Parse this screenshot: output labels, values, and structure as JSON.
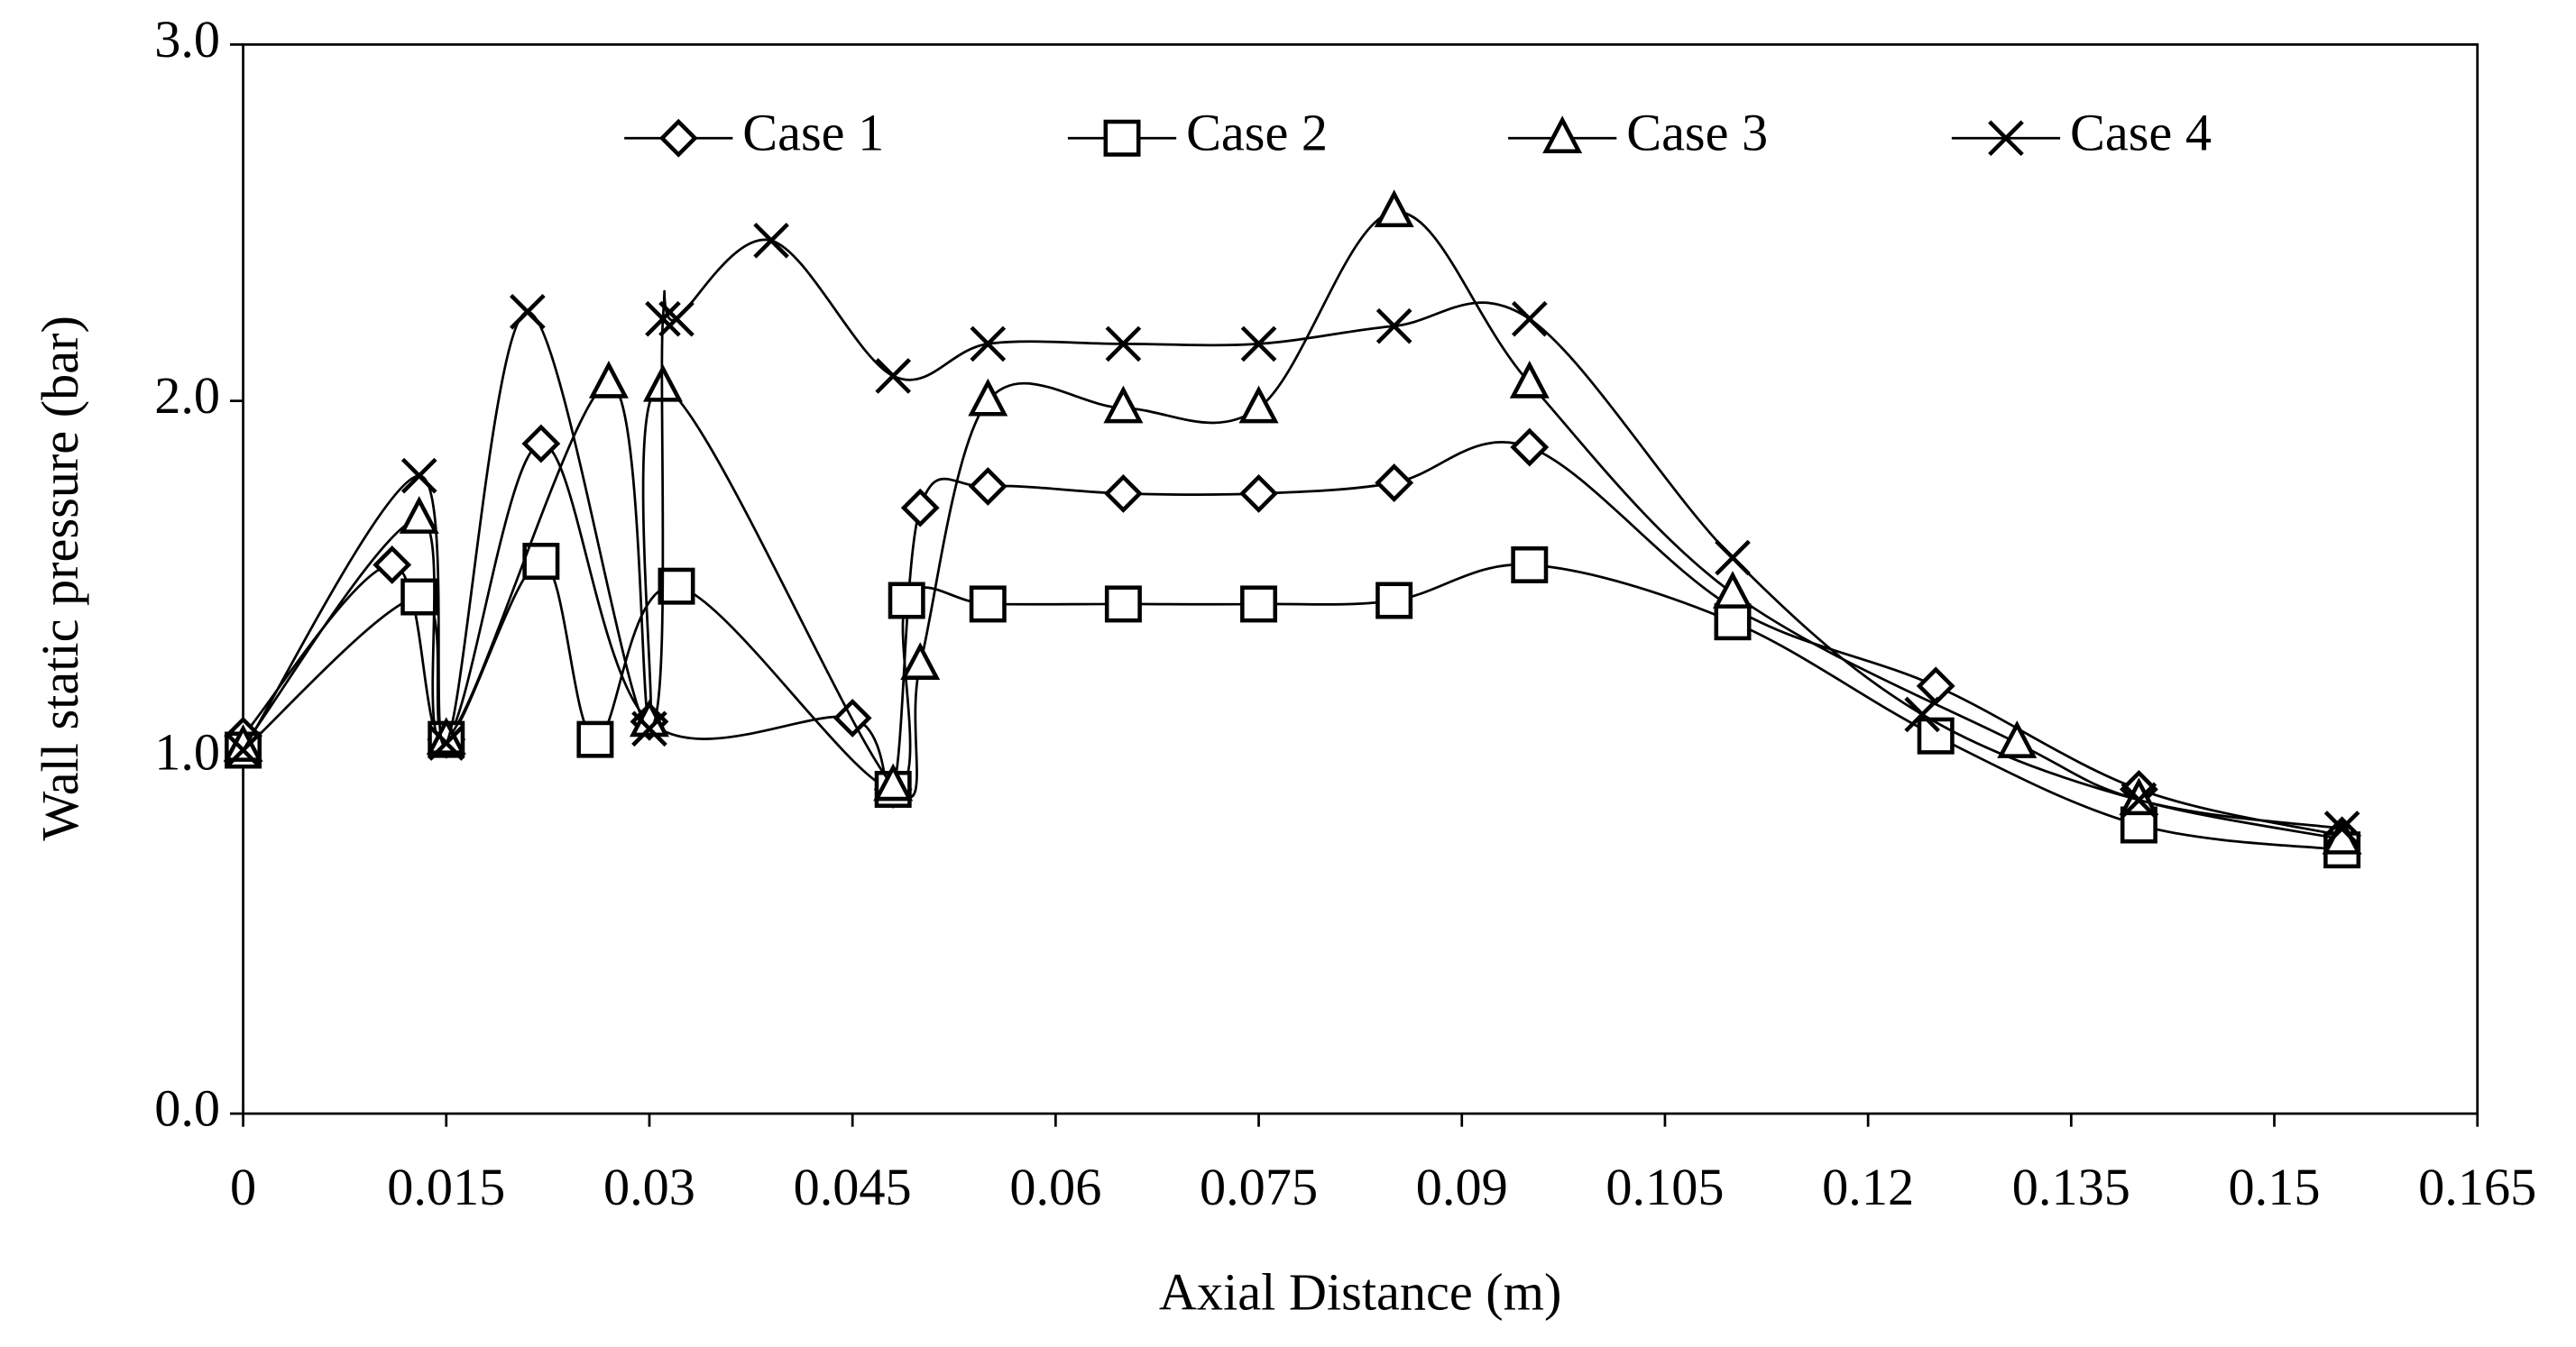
{
  "chart_data": {
    "type": "line",
    "x_label": "Axial Distance (m)",
    "y_label": "Wall static pressure (bar)",
    "xlim": [
      0,
      0.165
    ],
    "xticks": [
      0,
      0.015,
      0.03,
      0.045,
      0.06,
      0.075,
      0.09,
      0.105,
      0.12,
      0.135,
      0.15,
      0.165
    ],
    "ylim": [
      0,
      3
    ],
    "yticks": [
      {
        "value": 0,
        "label": "0.0"
      },
      {
        "value": 1,
        "label": "1.0"
      },
      {
        "value": 2,
        "label": "2.0"
      },
      {
        "value": 3,
        "label": "3.0"
      }
    ],
    "legend": "top",
    "series": [
      {
        "name": "Case 1",
        "color": "#000000",
        "marker": "diamond",
        "x": [
          0,
          0.011,
          0.015,
          0.022,
          0.03,
          0.045,
          0.048,
          0.05,
          0.055,
          0.065,
          0.075,
          0.085,
          0.095,
          0.11,
          0.125,
          0.14,
          0.155
        ],
        "values": [
          1.06,
          1.54,
          1.05,
          1.88,
          1.1,
          1.11,
          0.91,
          1.7,
          1.76,
          1.74,
          1.74,
          1.77,
          1.87,
          1.42,
          1.2,
          0.91,
          0.78
        ]
      },
      {
        "name": "Case 2",
        "color": "#000000",
        "marker": "square",
        "x": [
          0,
          0.013,
          0.015,
          0.022,
          0.026,
          0.032,
          0.048,
          0.049,
          0.055,
          0.065,
          0.075,
          0.085,
          0.095,
          0.11,
          0.125,
          0.14,
          0.155
        ],
        "values": [
          1.02,
          1.45,
          1.05,
          1.55,
          1.05,
          1.48,
          0.91,
          1.44,
          1.43,
          1.43,
          1.43,
          1.44,
          1.54,
          1.38,
          1.06,
          0.81,
          0.74
        ]
      },
      {
        "name": "Case 3",
        "color": "#000000",
        "marker": "triangle",
        "x": [
          0,
          0.013,
          0.015,
          0.027,
          0.03,
          0.031,
          0.048,
          0.05,
          0.055,
          0.065,
          0.075,
          0.085,
          0.095,
          0.11,
          0.131,
          0.14,
          0.155
        ],
        "values": [
          1.03,
          1.67,
          1.05,
          2.05,
          1.1,
          2.04,
          0.92,
          1.26,
          2.0,
          1.98,
          1.98,
          2.53,
          2.05,
          1.46,
          1.04,
          0.88,
          0.77
        ]
      },
      {
        "name": "Case 4",
        "color": "#000000",
        "marker": "x",
        "x": [
          0,
          0.013,
          0.015,
          0.021,
          0.03,
          0.031,
          0.032,
          0.039,
          0.048,
          0.055,
          0.065,
          0.075,
          0.085,
          0.095,
          0.11,
          0.124,
          0.14,
          0.155
        ],
        "values": [
          1.02,
          1.79,
          1.04,
          2.25,
          1.08,
          2.23,
          2.23,
          2.45,
          2.07,
          2.16,
          2.16,
          2.16,
          2.21,
          2.23,
          1.56,
          1.12,
          0.88,
          0.8
        ]
      }
    ]
  }
}
